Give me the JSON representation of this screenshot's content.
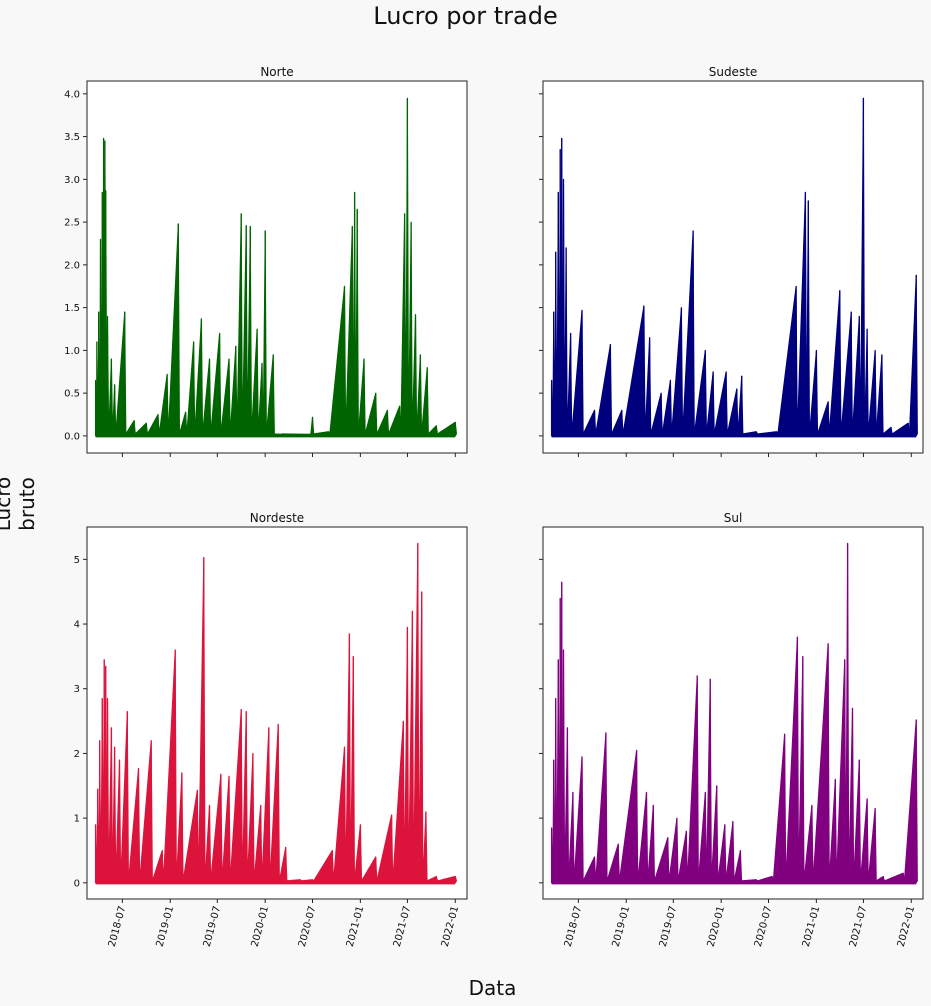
{
  "figure": {
    "title": "Lucro por trade",
    "xlabel": "Data",
    "ylabel": "Lucro bruto"
  },
  "chart_data": [
    {
      "type": "area",
      "title": "Norte",
      "color": "#006400",
      "xlim": [
        "2018-02-15",
        "2022-02-15"
      ],
      "ylim": [
        -0.2,
        4.15
      ],
      "yticks": [
        0.0,
        0.5,
        1.0,
        1.5,
        2.0,
        2.5,
        3.0,
        3.5,
        4.0
      ],
      "ytick_labels": [
        "0.0",
        "0.5",
        "1.0",
        "1.5",
        "2.0",
        "2.5",
        "3.0",
        "3.5",
        "4.0"
      ],
      "xticks": [
        "2018-07-01",
        "2019-01-01",
        "2019-07-01",
        "2020-01-01",
        "2020-07-01",
        "2021-01-01",
        "2021-07-01",
        "2022-01-01"
      ],
      "xtick_labels": [],
      "points": [
        [
          "2018-03-20",
          0.65
        ],
        [
          "2018-03-25",
          1.1
        ],
        [
          "2018-04-01",
          1.45
        ],
        [
          "2018-04-08",
          2.3
        ],
        [
          "2018-04-15",
          2.85
        ],
        [
          "2018-04-20",
          3.48
        ],
        [
          "2018-04-25",
          3.45
        ],
        [
          "2018-04-28",
          2.87
        ],
        [
          "2018-05-05",
          1.4
        ],
        [
          "2018-05-20",
          0.9
        ],
        [
          "2018-06-01",
          0.6
        ],
        [
          "2018-07-10",
          1.45
        ],
        [
          "2018-08-15",
          0.18
        ],
        [
          "2018-10-01",
          0.15
        ],
        [
          "2018-11-15",
          0.25
        ],
        [
          "2018-12-20",
          0.72
        ],
        [
          "2019-02-01",
          2.48
        ],
        [
          "2019-03-01",
          0.28
        ],
        [
          "2019-04-01",
          1.1
        ],
        [
          "2019-05-01",
          1.37
        ],
        [
          "2019-06-01",
          0.9
        ],
        [
          "2019-07-10",
          1.2
        ],
        [
          "2019-08-15",
          0.9
        ],
        [
          "2019-09-10",
          1.05
        ],
        [
          "2019-10-01",
          2.6
        ],
        [
          "2019-10-20",
          2.46
        ],
        [
          "2019-11-05",
          2.45
        ],
        [
          "2019-12-01",
          1.25
        ],
        [
          "2019-12-20",
          0.85
        ],
        [
          "2020-01-01",
          2.4
        ],
        [
          "2020-02-01",
          0.95
        ],
        [
          "2020-03-01",
          0.02
        ],
        [
          "2020-06-20",
          0.02
        ],
        [
          "2020-07-01",
          0.22
        ],
        [
          "2020-09-01",
          0.05
        ],
        [
          "2020-11-01",
          1.75
        ],
        [
          "2020-12-01",
          2.45
        ],
        [
          "2020-12-10",
          2.85
        ],
        [
          "2020-12-20",
          2.65
        ],
        [
          "2021-01-15",
          0.9
        ],
        [
          "2021-03-01",
          0.5
        ],
        [
          "2021-04-15",
          0.3
        ],
        [
          "2021-06-01",
          0.35
        ],
        [
          "2021-06-20",
          2.6
        ],
        [
          "2021-07-01",
          3.95
        ],
        [
          "2021-07-15",
          2.5
        ],
        [
          "2021-08-01",
          1.42
        ],
        [
          "2021-08-20",
          0.95
        ],
        [
          "2021-09-15",
          0.8
        ],
        [
          "2021-10-20",
          0.12
        ],
        [
          "2022-01-01",
          0.16
        ]
      ]
    },
    {
      "type": "area",
      "title": "Sudeste",
      "color": "#00007f",
      "xlim": [
        "2018-02-15",
        "2022-02-15"
      ],
      "ylim": [
        -0.2,
        4.15
      ],
      "yticks": [
        0.0,
        0.5,
        1.0,
        1.5,
        2.0,
        2.5,
        3.0,
        3.5,
        4.0
      ],
      "ytick_labels": [],
      "xticks": [
        "2018-07-01",
        "2019-01-01",
        "2019-07-01",
        "2020-01-01",
        "2020-07-01",
        "2021-01-01",
        "2021-07-01",
        "2022-01-01"
      ],
      "xtick_labels": [],
      "points": [
        [
          "2018-03-20",
          0.65
        ],
        [
          "2018-03-28",
          1.45
        ],
        [
          "2018-04-05",
          2.15
        ],
        [
          "2018-04-15",
          2.85
        ],
        [
          "2018-04-22",
          3.35
        ],
        [
          "2018-04-28",
          3.48
        ],
        [
          "2018-05-05",
          3.0
        ],
        [
          "2018-05-15",
          2.2
        ],
        [
          "2018-06-01",
          1.2
        ],
        [
          "2018-07-15",
          1.47
        ],
        [
          "2018-09-01",
          0.3
        ],
        [
          "2018-11-01",
          1.07
        ],
        [
          "2018-12-15",
          0.3
        ],
        [
          "2019-03-10",
          1.52
        ],
        [
          "2019-04-01",
          1.15
        ],
        [
          "2019-05-15",
          0.5
        ],
        [
          "2019-06-20",
          0.65
        ],
        [
          "2019-08-01",
          1.5
        ],
        [
          "2019-09-15",
          2.4
        ],
        [
          "2019-11-01",
          1.0
        ],
        [
          "2019-12-01",
          0.75
        ],
        [
          "2020-01-20",
          0.75
        ],
        [
          "2020-03-01",
          0.55
        ],
        [
          "2020-03-20",
          0.7
        ],
        [
          "2020-05-15",
          0.05
        ],
        [
          "2020-08-01",
          0.05
        ],
        [
          "2020-10-15",
          1.75
        ],
        [
          "2020-11-20",
          2.85
        ],
        [
          "2020-12-01",
          2.75
        ],
        [
          "2021-01-01",
          1.0
        ],
        [
          "2021-02-15",
          0.4
        ],
        [
          "2021-04-01",
          1.7
        ],
        [
          "2021-05-15",
          1.45
        ],
        [
          "2021-06-15",
          1.4
        ],
        [
          "2021-07-01",
          3.95
        ],
        [
          "2021-07-15",
          1.25
        ],
        [
          "2021-08-15",
          1.0
        ],
        [
          "2021-09-10",
          0.95
        ],
        [
          "2021-10-15",
          0.1
        ],
        [
          "2021-12-20",
          0.15
        ],
        [
          "2022-01-20",
          1.88
        ]
      ]
    },
    {
      "type": "area",
      "title": "Nordeste",
      "color": "#dc143c",
      "xlim": [
        "2018-02-15",
        "2022-02-15"
      ],
      "ylim": [
        -0.25,
        5.5
      ],
      "yticks": [
        0,
        1,
        2,
        3,
        4,
        5
      ],
      "ytick_labels": [
        "0",
        "1",
        "2",
        "3",
        "4",
        "5"
      ],
      "xticks": [
        "2018-07-01",
        "2019-01-01",
        "2019-07-01",
        "2020-01-01",
        "2020-07-01",
        "2021-01-01",
        "2021-07-01",
        "2022-01-01"
      ],
      "xtick_labels": [
        "2018-07",
        "2019-01",
        "2019-07",
        "2020-01",
        "2020-07",
        "2021-01",
        "2021-07",
        "2022-01"
      ],
      "points": [
        [
          "2018-03-20",
          0.9
        ],
        [
          "2018-03-28",
          1.45
        ],
        [
          "2018-04-05",
          2.2
        ],
        [
          "2018-04-15",
          2.85
        ],
        [
          "2018-04-22",
          3.45
        ],
        [
          "2018-04-28",
          3.35
        ],
        [
          "2018-05-05",
          2.85
        ],
        [
          "2018-05-20",
          2.4
        ],
        [
          "2018-06-01",
          2.1
        ],
        [
          "2018-06-20",
          1.9
        ],
        [
          "2018-07-20",
          2.65
        ],
        [
          "2018-09-01",
          1.77
        ],
        [
          "2018-10-20",
          2.2
        ],
        [
          "2018-12-01",
          0.5
        ],
        [
          "2019-01-20",
          3.6
        ],
        [
          "2019-02-15",
          1.7
        ],
        [
          "2019-04-15",
          1.43
        ],
        [
          "2019-05-10",
          5.03
        ],
        [
          "2019-06-01",
          1.2
        ],
        [
          "2019-07-15",
          1.68
        ],
        [
          "2019-08-15",
          1.65
        ],
        [
          "2019-10-01",
          2.68
        ],
        [
          "2019-10-20",
          2.65
        ],
        [
          "2019-11-15",
          2.0
        ],
        [
          "2019-12-15",
          1.2
        ],
        [
          "2020-01-15",
          2.4
        ],
        [
          "2020-02-20",
          2.45
        ],
        [
          "2020-03-20",
          0.55
        ],
        [
          "2020-05-15",
          0.05
        ],
        [
          "2020-07-01",
          0.05
        ],
        [
          "2020-09-15",
          0.5
        ],
        [
          "2020-11-01",
          2.1
        ],
        [
          "2020-11-20",
          3.85
        ],
        [
          "2020-12-05",
          3.5
        ],
        [
          "2021-01-01",
          0.9
        ],
        [
          "2021-03-01",
          0.4
        ],
        [
          "2021-05-01",
          1.05
        ],
        [
          "2021-06-15",
          2.5
        ],
        [
          "2021-07-01",
          3.95
        ],
        [
          "2021-07-20",
          4.2
        ],
        [
          "2021-08-10",
          5.25
        ],
        [
          "2021-08-25",
          4.5
        ],
        [
          "2021-09-10",
          1.1
        ],
        [
          "2021-10-20",
          0.1
        ],
        [
          "2022-01-01",
          0.1
        ]
      ]
    },
    {
      "type": "area",
      "title": "Sul",
      "color": "#800080",
      "xlim": [
        "2018-02-15",
        "2022-02-15"
      ],
      "ylim": [
        -0.25,
        5.5
      ],
      "yticks": [
        0,
        1,
        2,
        3,
        4,
        5
      ],
      "ytick_labels": [],
      "xticks": [
        "2018-07-01",
        "2019-01-01",
        "2019-07-01",
        "2020-01-01",
        "2020-07-01",
        "2021-01-01",
        "2021-07-01",
        "2022-01-01"
      ],
      "xtick_labels": [
        "2018-07",
        "2019-01",
        "2019-07",
        "2020-01",
        "2020-07",
        "2021-01",
        "2021-07",
        "2022-01"
      ],
      "points": [
        [
          "2018-03-20",
          0.85
        ],
        [
          "2018-03-28",
          1.9
        ],
        [
          "2018-04-05",
          2.85
        ],
        [
          "2018-04-15",
          3.45
        ],
        [
          "2018-04-22",
          4.4
        ],
        [
          "2018-04-28",
          4.65
        ],
        [
          "2018-05-05",
          3.6
        ],
        [
          "2018-05-20",
          2.4
        ],
        [
          "2018-06-10",
          1.4
        ],
        [
          "2018-07-15",
          1.95
        ],
        [
          "2018-09-01",
          0.4
        ],
        [
          "2018-10-15",
          2.32
        ],
        [
          "2018-12-01",
          0.6
        ],
        [
          "2019-02-10",
          2.05
        ],
        [
          "2019-03-20",
          1.4
        ],
        [
          "2019-04-15",
          1.2
        ],
        [
          "2019-06-10",
          0.7
        ],
        [
          "2019-07-15",
          1.0
        ],
        [
          "2019-08-20",
          0.8
        ],
        [
          "2019-10-01",
          3.2
        ],
        [
          "2019-11-01",
          1.4
        ],
        [
          "2019-11-20",
          3.15
        ],
        [
          "2019-12-15",
          1.5
        ],
        [
          "2020-01-15",
          0.9
        ],
        [
          "2020-02-15",
          0.95
        ],
        [
          "2020-03-15",
          0.5
        ],
        [
          "2020-05-15",
          0.05
        ],
        [
          "2020-07-15",
          0.1
        ],
        [
          "2020-09-01",
          2.3
        ],
        [
          "2020-10-20",
          3.8
        ],
        [
          "2020-11-10",
          3.5
        ],
        [
          "2020-12-15",
          1.2
        ],
        [
          "2021-02-15",
          3.7
        ],
        [
          "2021-03-15",
          1.6
        ],
        [
          "2021-04-20",
          3.45
        ],
        [
          "2021-05-01",
          5.25
        ],
        [
          "2021-05-20",
          2.7
        ],
        [
          "2021-06-15",
          1.9
        ],
        [
          "2021-07-15",
          1.3
        ],
        [
          "2021-08-15",
          1.15
        ],
        [
          "2021-09-15",
          0.1
        ],
        [
          "2021-12-01",
          0.15
        ],
        [
          "2022-01-20",
          2.52
        ]
      ]
    }
  ]
}
